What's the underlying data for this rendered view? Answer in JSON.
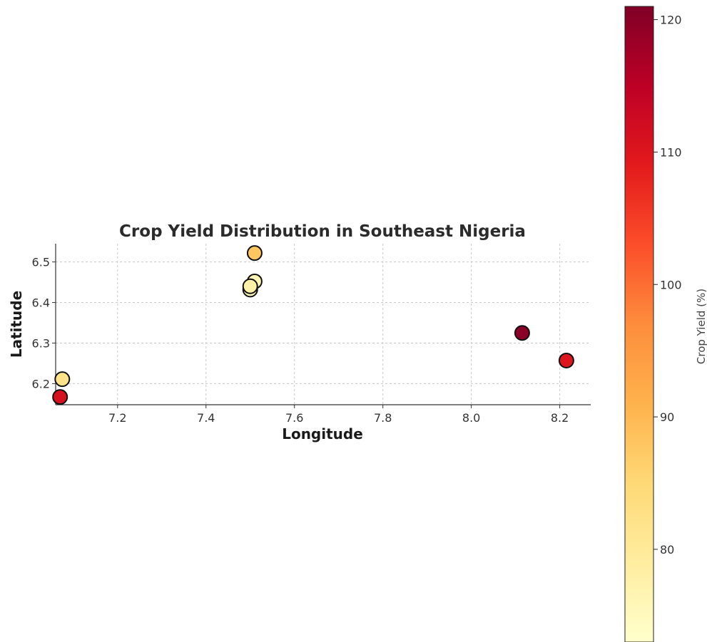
{
  "chart_data": {
    "type": "scatter",
    "title": "Crop Yield Distribution in Southeast Nigeria",
    "xlabel": "Longitude",
    "ylabel": "Latitude",
    "xlim": [
      7.06,
      8.27
    ],
    "ylim": [
      6.148,
      6.545
    ],
    "xticks": [
      "7.2",
      "7.4",
      "7.6",
      "7.8",
      "8.0",
      "8.2"
    ],
    "yticks": [
      "6.2",
      "6.3",
      "6.4",
      "6.5"
    ],
    "grid": true,
    "points": [
      {
        "x": 7.51,
        "y": 6.522,
        "value": 88
      },
      {
        "x": 7.51,
        "y": 6.452,
        "value": 76
      },
      {
        "x": 7.5,
        "y": 6.432,
        "value": 75
      },
      {
        "x": 7.5,
        "y": 6.44,
        "value": 78
      },
      {
        "x": 8.115,
        "y": 6.325,
        "value": 120
      },
      {
        "x": 8.215,
        "y": 6.257,
        "value": 110
      },
      {
        "x": 7.075,
        "y": 6.211,
        "value": 82
      },
      {
        "x": 7.07,
        "y": 6.167,
        "value": 111
      }
    ],
    "colorbar": {
      "label": "Crop Yield (%)",
      "ticks": [
        "80",
        "90",
        "100",
        "110",
        "120"
      ],
      "min": 73,
      "max": 121,
      "colormap": [
        "#ffffcc",
        "#ffeda0",
        "#fed976",
        "#feb24c",
        "#fd8d3c",
        "#fc4e2a",
        "#e31a1c",
        "#bd0026",
        "#800026"
      ]
    }
  }
}
